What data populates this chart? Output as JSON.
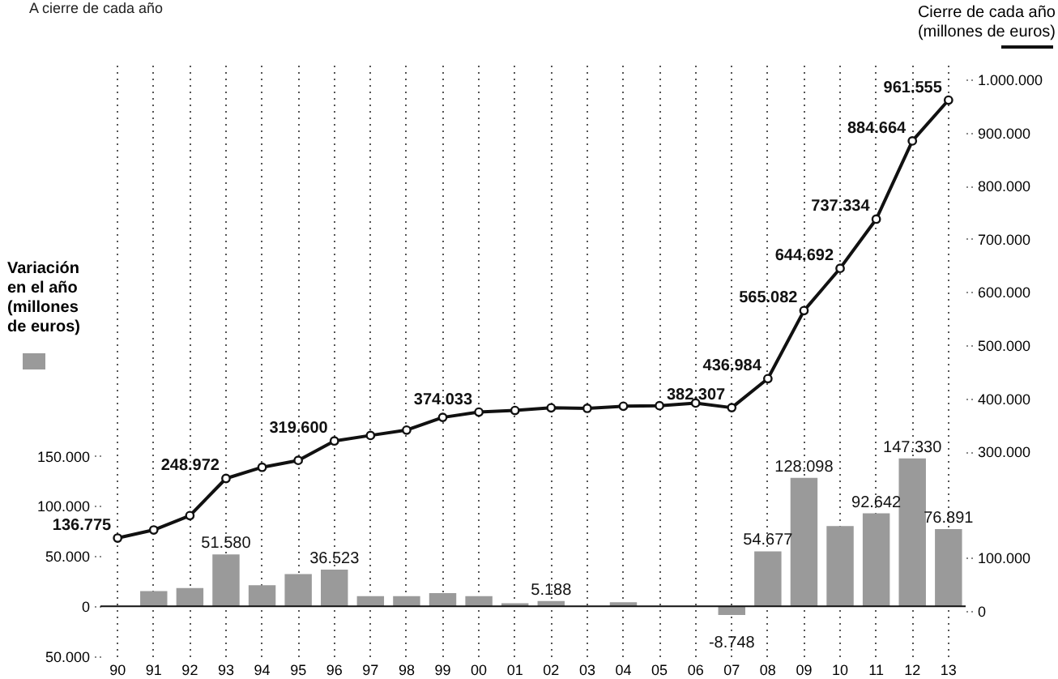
{
  "chart_data": {
    "type": "bar",
    "title": "A cierre de cada año",
    "ylabel": "Variación en el año (millones de euros)",
    "y2label": "Cierre de cada año (millones de euros)",
    "categories": [
      "90",
      "91",
      "92",
      "93",
      "94",
      "95",
      "96",
      "97",
      "98",
      "99",
      "00",
      "01",
      "02",
      "03",
      "04",
      "05",
      "06",
      "07",
      "08",
      "09",
      "10",
      "11",
      "12",
      "13"
    ],
    "series": [
      {
        "color": "#9a9a9a",
        "values": [
          null,
          15000,
          18000,
          51580,
          21000,
          32000,
          36523,
          10000,
          10000,
          13000,
          10000,
          3000,
          5188,
          null,
          4000,
          null,
          null,
          -8748,
          54677,
          128098,
          80000,
          92642,
          147330,
          76891
        ],
        "value_labels": [
          null,
          null,
          null,
          "51.580",
          null,
          null,
          "36.523",
          null,
          null,
          null,
          null,
          null,
          "5.188",
          null,
          null,
          null,
          null,
          "-8.748",
          "54.677",
          "128.098",
          null,
          "92.642",
          "147.330",
          "76.891"
        ]
      },
      {
        "type": "line",
        "axis": "y2",
        "color": "#111111",
        "marker": "circle",
        "values": [
          136775,
          152000,
          179000,
          248972,
          270000,
          283000,
          319600,
          330000,
          340000,
          364000,
          374033,
          377000,
          382000,
          381000,
          385000,
          386000,
          391000,
          382307,
          436984,
          565082,
          644692,
          737334,
          884664,
          961555
        ],
        "value_labels": [
          "136.775",
          null,
          null,
          "248.972",
          null,
          null,
          "319.600",
          null,
          null,
          null,
          "374.033",
          null,
          null,
          null,
          null,
          null,
          null,
          "382.307",
          "436.984",
          "565.082",
          "644.692",
          "737.334",
          "884.664",
          "961.555"
        ]
      }
    ],
    "ylim": [
      -50000,
      540000
    ],
    "yticks": [
      {
        "value": -50000,
        "label": "50.000"
      },
      {
        "value": 0,
        "label": "0"
      },
      {
        "value": 50000,
        "label": "50.000"
      },
      {
        "value": 100000,
        "label": "100.000"
      },
      {
        "value": 150000,
        "label": "150.000"
      }
    ],
    "y2lim": [
      -86000,
      1028000
    ],
    "y2ticks": [
      {
        "value": 0,
        "label": "0"
      },
      {
        "value": 100000,
        "label": "100.000"
      },
      {
        "value": 300000,
        "label": "300.000"
      },
      {
        "value": 400000,
        "label": "400.000"
      },
      {
        "value": 500000,
        "label": "500.000"
      },
      {
        "value": 600000,
        "label": "600.000"
      },
      {
        "value": 700000,
        "label": "700.000"
      },
      {
        "value": 800000,
        "label": "800.000"
      },
      {
        "value": 900000,
        "label": "900.000"
      },
      {
        "value": 1000000,
        "label": "1.000.000"
      }
    ],
    "grid": "x"
  }
}
